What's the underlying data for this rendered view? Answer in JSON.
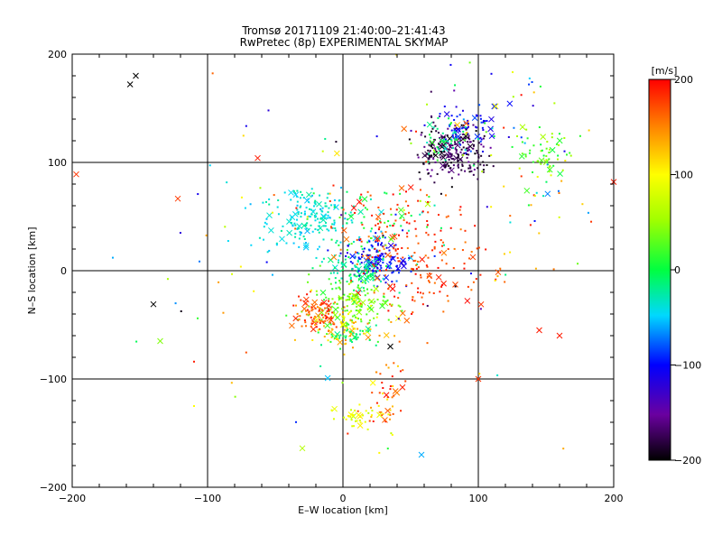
{
  "chart_data": {
    "type": "scatter",
    "title": "Tromsø 20171109 21:40:00–21:41:43",
    "subtitle": "RwPretec (8p) EXPERIMENTAL SKYMAP",
    "xlabel": "E–W location [km]",
    "ylabel": "N–S location [km]",
    "xlim": [
      -200,
      200
    ],
    "ylim": [
      -200,
      200
    ],
    "x_ticks": [
      "−200",
      "−100",
      "0",
      "100",
      "200"
    ],
    "y_ticks": [
      "−200",
      "−100",
      "0",
      "100",
      "200"
    ],
    "grid": true,
    "colorbar": {
      "label": "[m/s]",
      "range": [
        -200,
        200
      ],
      "ticks": [
        "200",
        "100",
        "0",
        "−100",
        "−200"
      ]
    },
    "point_markers": {
      "dot": "small dot",
      "cross": "×"
    },
    "clusters": [
      {
        "x": 80,
        "y": 110,
        "sx": 12,
        "sy": 12,
        "n": 240,
        "vmin": -200,
        "vmax": -150
      },
      {
        "x": 90,
        "y": 135,
        "sx": 12,
        "sy": 10,
        "n": 60,
        "vmin": -120,
        "vmax": -80
      },
      {
        "x": 75,
        "y": 120,
        "sx": 10,
        "sy": 8,
        "n": 40,
        "vmin": -40,
        "vmax": 20
      },
      {
        "x": 150,
        "y": 110,
        "sx": 12,
        "sy": 12,
        "n": 55,
        "vmin": 0,
        "vmax": 60
      },
      {
        "x": 140,
        "y": 60,
        "sx": 20,
        "sy": 25,
        "n": 35,
        "vmin": -100,
        "vmax": 200
      },
      {
        "x": 90,
        "y": 140,
        "sx": 35,
        "sy": 25,
        "n": 45,
        "vmin": -150,
        "vmax": 200
      },
      {
        "x": -25,
        "y": 50,
        "sx": 18,
        "sy": 15,
        "n": 170,
        "vmin": -60,
        "vmax": -20
      },
      {
        "x": 20,
        "y": 40,
        "sx": 20,
        "sy": 20,
        "n": 80,
        "vmin": -60,
        "vmax": 30
      },
      {
        "x": 25,
        "y": 10,
        "sx": 12,
        "sy": 10,
        "n": 130,
        "vmin": -120,
        "vmax": -80
      },
      {
        "x": 10,
        "y": 0,
        "sx": 14,
        "sy": 8,
        "n": 90,
        "vmin": -40,
        "vmax": 0
      },
      {
        "x": 60,
        "y": 10,
        "sx": 25,
        "sy": 25,
        "n": 160,
        "vmin": 150,
        "vmax": 200
      },
      {
        "x": 25,
        "y": 40,
        "sx": 25,
        "sy": 25,
        "n": 60,
        "vmin": 150,
        "vmax": 200
      },
      {
        "x": 5,
        "y": -30,
        "sx": 15,
        "sy": 12,
        "n": 140,
        "vmin": 10,
        "vmax": 60
      },
      {
        "x": -20,
        "y": -40,
        "sx": 10,
        "sy": 8,
        "n": 90,
        "vmin": 140,
        "vmax": 200
      },
      {
        "x": 5,
        "y": -50,
        "sx": 12,
        "sy": 10,
        "n": 70,
        "vmin": 90,
        "vmax": 150
      },
      {
        "x": 5,
        "y": -60,
        "sx": 10,
        "sy": 5,
        "n": 40,
        "vmin": -30,
        "vmax": 20
      },
      {
        "x": 30,
        "y": -120,
        "sx": 8,
        "sy": 20,
        "n": 50,
        "vmin": 100,
        "vmax": 200
      },
      {
        "x": 10,
        "y": -135,
        "sx": 10,
        "sy": 5,
        "n": 35,
        "vmin": 60,
        "vmax": 110
      },
      {
        "x": 0,
        "y": 0,
        "sx": 90,
        "sy": 90,
        "n": 90,
        "vmin": -200,
        "vmax": 200
      }
    ],
    "outliers": [
      {
        "x": -153,
        "y": 180,
        "v": -200,
        "m": "cross"
      },
      {
        "x": -197,
        "y": 89,
        "v": 180,
        "m": "cross"
      },
      {
        "x": -140,
        "y": -31,
        "v": -200,
        "m": "cross"
      },
      {
        "x": -135,
        "y": -65,
        "v": 40,
        "m": "cross"
      },
      {
        "x": -63,
        "y": 104,
        "v": 190,
        "m": "cross"
      },
      {
        "x": -110,
        "y": -84,
        "v": 190,
        "m": "dot"
      },
      {
        "x": -170,
        "y": 12,
        "v": -60,
        "m": "dot"
      },
      {
        "x": -110,
        "y": -125,
        "v": 100,
        "m": "dot"
      },
      {
        "x": -30,
        "y": -164,
        "v": 60,
        "m": "cross"
      },
      {
        "x": 58,
        "y": -170,
        "v": -60,
        "m": "cross"
      },
      {
        "x": 100,
        "y": -100,
        "v": 180,
        "m": "cross"
      },
      {
        "x": 160,
        "y": -60,
        "v": 190,
        "m": "cross"
      },
      {
        "x": 145,
        "y": -55,
        "v": 190,
        "m": "cross"
      },
      {
        "x": 200,
        "y": 82,
        "v": 190,
        "m": "cross"
      },
      {
        "x": 35,
        "y": -70,
        "v": -200,
        "m": "cross"
      },
      {
        "x": -55,
        "y": 148,
        "v": -120,
        "m": "dot"
      }
    ]
  }
}
